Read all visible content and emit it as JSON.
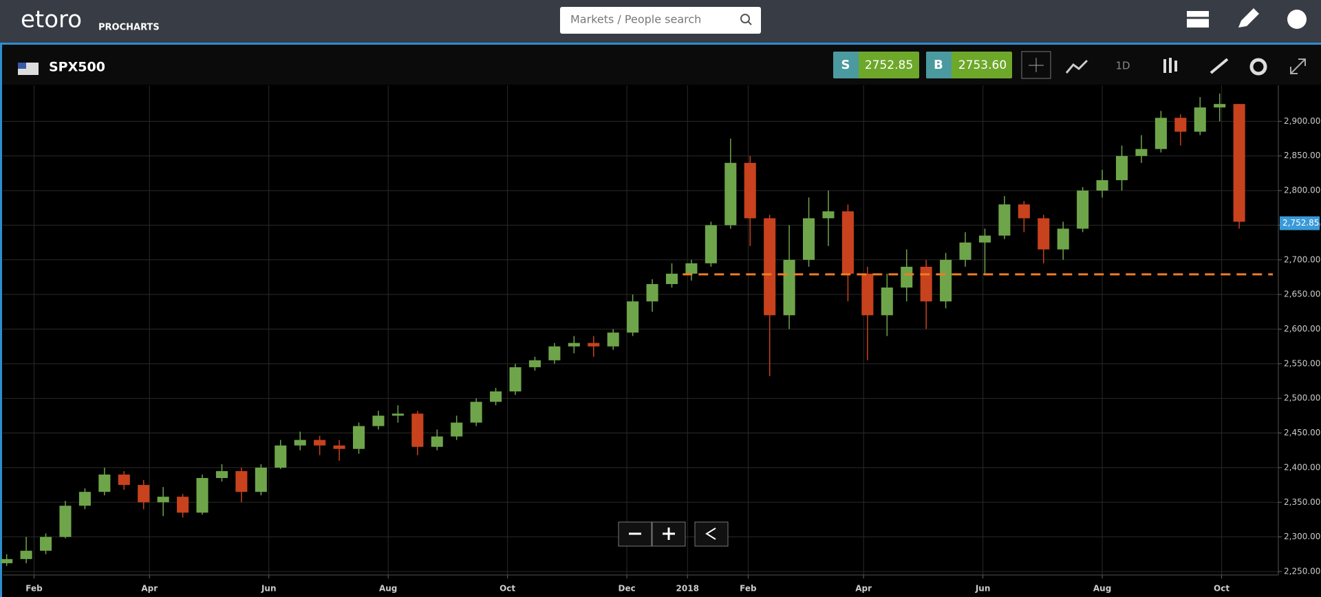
{
  "ui": {
    "logo": "etoro",
    "logo_sub": "PROCHARTS",
    "search_placeholder": "Markets / People search",
    "symbol": "SPX500",
    "sell_label": "S",
    "sell_price": "2752.85",
    "buy_label": "B",
    "buy_price": "2753.60",
    "interval": "1D"
  },
  "chart_data": {
    "type": "candlestick",
    "x": [
      17,
      27,
      37,
      47,
      57,
      67,
      77,
      87,
      97,
      107,
      117,
      127,
      137,
      147,
      157,
      167,
      177,
      187,
      197,
      207,
      217,
      227,
      237,
      247,
      257,
      267,
      277,
      287,
      297,
      307,
      317,
      327,
      337,
      347,
      357,
      367,
      377,
      387,
      397,
      407,
      417,
      427,
      437,
      447,
      457,
      467,
      477,
      487,
      497,
      507,
      517,
      527,
      537,
      547,
      557,
      567,
      577,
      587,
      597,
      607,
      617,
      627,
      637,
      647
    ],
    "open": [
      2262,
      2268,
      2280,
      2300,
      2345,
      2365,
      2390,
      2375,
      2350,
      2358,
      2335,
      2385,
      2395,
      2365,
      2400,
      2432,
      2440,
      2432,
      2427,
      2460,
      2475,
      2478,
      2430,
      2445,
      2465,
      2495,
      2510,
      2545,
      2555,
      2575,
      2580,
      2575,
      2595,
      2640,
      2665,
      2680,
      2695,
      2750,
      2840,
      2760,
      2620,
      2700,
      2760,
      2770,
      2680,
      2620,
      2660,
      2690,
      2640,
      2700,
      2725,
      2735,
      2780,
      2760,
      2715,
      2745,
      2800,
      2815,
      2850,
      2860,
      2905,
      2885,
      2920,
      2925
    ],
    "high": [
      2275,
      2300,
      2305,
      2352,
      2370,
      2400,
      2395,
      2382,
      2372,
      2362,
      2390,
      2405,
      2400,
      2405,
      2440,
      2452,
      2446,
      2440,
      2465,
      2482,
      2490,
      2482,
      2455,
      2475,
      2500,
      2515,
      2550,
      2560,
      2580,
      2590,
      2590,
      2600,
      2650,
      2672,
      2695,
      2700,
      2755,
      2875,
      2850,
      2765,
      2750,
      2790,
      2800,
      2780,
      2690,
      2680,
      2715,
      2700,
      2710,
      2740,
      2745,
      2792,
      2785,
      2765,
      2755,
      2805,
      2830,
      2865,
      2880,
      2915,
      2910,
      2935,
      2940,
      2925
    ],
    "low": [
      2258,
      2262,
      2275,
      2298,
      2340,
      2360,
      2368,
      2340,
      2330,
      2328,
      2332,
      2380,
      2350,
      2360,
      2398,
      2425,
      2418,
      2410,
      2420,
      2455,
      2465,
      2418,
      2425,
      2440,
      2460,
      2490,
      2505,
      2540,
      2550,
      2565,
      2560,
      2570,
      2590,
      2625,
      2660,
      2670,
      2690,
      2745,
      2720,
      2532,
      2600,
      2690,
      2720,
      2640,
      2555,
      2590,
      2640,
      2600,
      2630,
      2690,
      2680,
      2730,
      2740,
      2695,
      2700,
      2740,
      2790,
      2800,
      2840,
      2855,
      2865,
      2880,
      2900,
      2745
    ],
    "close": [
      2268,
      2280,
      2300,
      2345,
      2365,
      2390,
      2375,
      2350,
      2358,
      2335,
      2385,
      2395,
      2365,
      2400,
      2432,
      2440,
      2432,
      2427,
      2460,
      2475,
      2478,
      2430,
      2445,
      2465,
      2495,
      2510,
      2545,
      2555,
      2575,
      2580,
      2575,
      2595,
      2640,
      2665,
      2680,
      2695,
      2750,
      2840,
      2760,
      2620,
      2700,
      2760,
      2770,
      2680,
      2620,
      2660,
      2690,
      2640,
      2700,
      2725,
      2735,
      2780,
      2760,
      2715,
      2745,
      2800,
      2815,
      2850,
      2860,
      2905,
      2885,
      2920,
      2925,
      2755
    ],
    "up_color": "#6fa54a",
    "down_color": "#c8421e",
    "xlim": [
      15,
      667
    ],
    "xticks": [
      {
        "value": 31,
        "label": "Feb"
      },
      {
        "value": 90,
        "label": "Apr"
      },
      {
        "value": 151,
        "label": "Jun"
      },
      {
        "value": 212,
        "label": "Aug"
      },
      {
        "value": 273,
        "label": "Oct"
      },
      {
        "value": 334,
        "label": "Dec"
      },
      {
        "value": 365,
        "label": "2018"
      },
      {
        "value": 396,
        "label": "Feb"
      },
      {
        "value": 455,
        "label": "Apr"
      },
      {
        "value": 516,
        "label": "Jun"
      },
      {
        "value": 577,
        "label": "Aug"
      },
      {
        "value": 638,
        "label": "Oct"
      }
    ],
    "ylim": [
      2245,
      2952
    ],
    "yticks": [
      {
        "value": 2250,
        "label": "2,250.00"
      },
      {
        "value": 2300,
        "label": "2,300.00"
      },
      {
        "value": 2350,
        "label": "2,350.00"
      },
      {
        "value": 2400,
        "label": "2,400.00"
      },
      {
        "value": 2450,
        "label": "2,450.00"
      },
      {
        "value": 2500,
        "label": "2,500.00"
      },
      {
        "value": 2550,
        "label": "2,550.00"
      },
      {
        "value": 2600,
        "label": "2,600.00"
      },
      {
        "value": 2650,
        "label": "2,650.00"
      },
      {
        "value": 2700,
        "label": "2,700.00"
      },
      {
        "value": 2750,
        "label": "2,750.00"
      },
      {
        "value": 2800,
        "label": "2,800.00"
      },
      {
        "value": 2850,
        "label": "2,850.00"
      },
      {
        "value": 2900,
        "label": "2,900.00"
      }
    ],
    "grid": true,
    "last_price": {
      "value": 2752.85,
      "label": "2,752.85"
    },
    "reference_line": {
      "value": 2679,
      "color": "#f07c24"
    }
  }
}
